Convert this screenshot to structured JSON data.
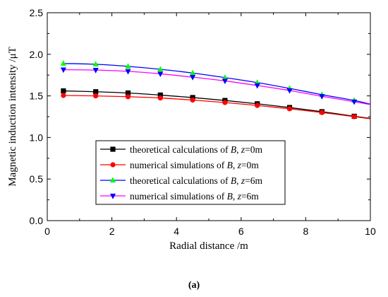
{
  "caption": "(a)",
  "chart_data": {
    "type": "line",
    "xlabel": "Radial distance /m",
    "ylabel": "Magnetic induction intensity /μT",
    "xlim": [
      0,
      10
    ],
    "ylim": [
      0.0,
      2.5
    ],
    "x_ticks": [
      0,
      2,
      4,
      6,
      8,
      10
    ],
    "y_ticks": [
      "0.0",
      "0.5",
      "1.0",
      "1.5",
      "2.0",
      "2.5"
    ],
    "grid": false,
    "legend_position": "lower-left",
    "series": [
      {
        "name": "theoretical calculations of B, z=0m",
        "legend": {
          "pre": "theoretical calculations of ",
          "var": "B",
          "mid": ", ",
          "var2": "z",
          "post": "=0m"
        },
        "color": "#000000",
        "marker": "square",
        "x": [
          0.5,
          1.5,
          2.5,
          3.5,
          4.5,
          5.5,
          6.5,
          7.5,
          8.5,
          9.5
        ],
        "y": [
          1.56,
          1.55,
          1.535,
          1.51,
          1.48,
          1.445,
          1.405,
          1.36,
          1.31,
          1.255
        ],
        "line_end": [
          10,
          1.23
        ]
      },
      {
        "name": "numerical simulations of B, z=0m",
        "legend": {
          "pre": "numerical simulations of ",
          "var": "B",
          "mid": ", ",
          "var2": "z",
          "post": "=0m"
        },
        "color": "#ff0000",
        "marker": "circle",
        "x": [
          0.5,
          1.5,
          2.5,
          3.5,
          4.5,
          5.5,
          6.5,
          7.5,
          8.5,
          9.5
        ],
        "y": [
          1.505,
          1.5,
          1.49,
          1.475,
          1.45,
          1.42,
          1.385,
          1.345,
          1.3,
          1.25
        ],
        "line_end": [
          10,
          1.225
        ]
      },
      {
        "name": "theoretical calculations of B, z=6m",
        "legend": {
          "pre": "theoretical calculations of ",
          "var": "B",
          "mid": ", ",
          "var2": "z",
          "post": "=6m"
        },
        "color": "#0000ff",
        "marker_color": "#00ff00",
        "marker": "triangle-up",
        "x": [
          0.5,
          1.5,
          2.5,
          3.5,
          4.5,
          5.5,
          6.5,
          7.5,
          8.5,
          9.5
        ],
        "y": [
          1.89,
          1.88,
          1.855,
          1.82,
          1.775,
          1.72,
          1.66,
          1.59,
          1.515,
          1.445
        ],
        "line_end": [
          10,
          1.4
        ]
      },
      {
        "name": "numerical simulations of B, z=6m",
        "legend": {
          "pre": "numerical simulations of ",
          "var": "B",
          "mid": ", ",
          "var2": "z",
          "post": "=6m"
        },
        "color": "#ff00ff",
        "marker_color": "#0000ff",
        "marker": "triangle-down",
        "x": [
          0.5,
          1.5,
          2.5,
          3.5,
          4.5,
          5.5,
          6.5,
          7.5,
          8.5,
          9.5
        ],
        "y": [
          1.815,
          1.81,
          1.795,
          1.765,
          1.725,
          1.68,
          1.625,
          1.565,
          1.495,
          1.43
        ],
        "line_end": [
          10,
          1.395
        ]
      }
    ]
  }
}
